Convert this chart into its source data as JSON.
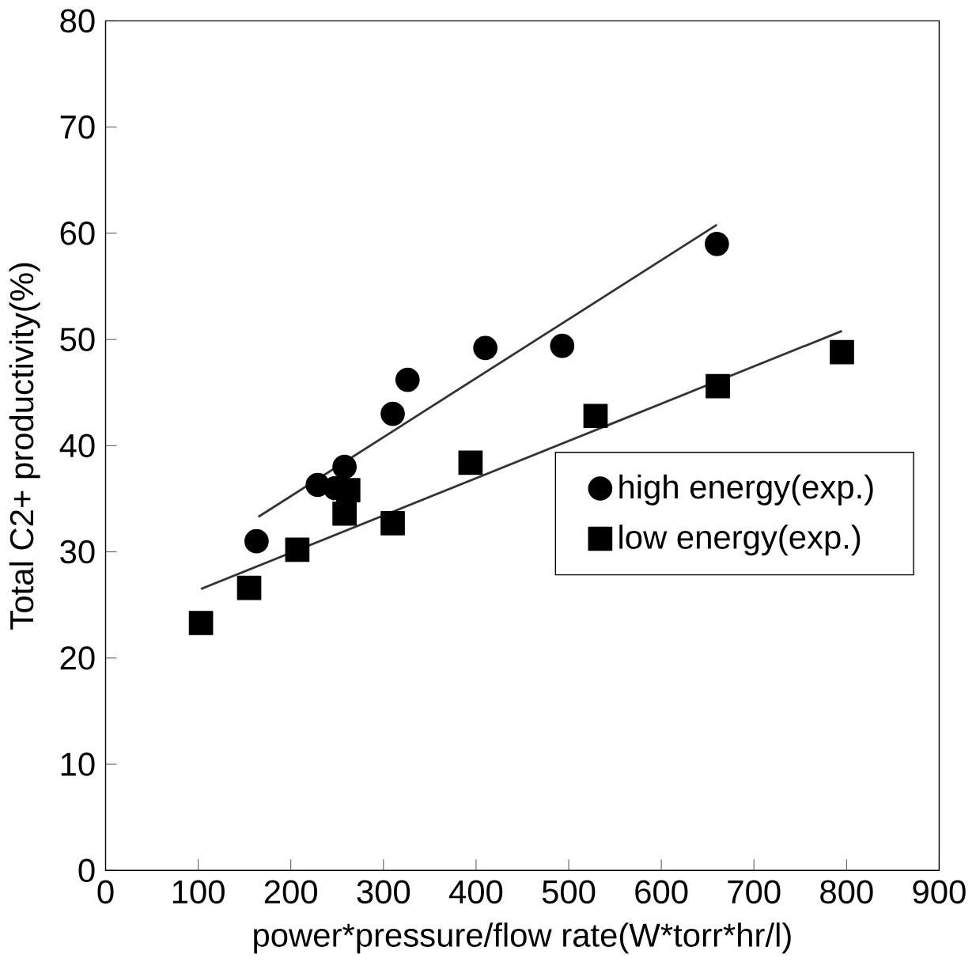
{
  "chart_data": {
    "type": "scatter",
    "xlabel": "power*pressure/flow rate(W*torr*hr/l)",
    "ylabel": "Total C2+ productivity(%)",
    "xlim": [
      0,
      900
    ],
    "xticks": [
      0,
      100,
      200,
      300,
      400,
      500,
      600,
      700,
      800,
      900
    ],
    "ylim": [
      0,
      80
    ],
    "yticks": [
      0,
      10,
      20,
      30,
      40,
      50,
      60,
      70,
      80
    ],
    "grid": false,
    "legend": "right",
    "series": [
      {
        "name": "high energy(exp.)",
        "color": "#000000",
        "marker": "circle",
        "x": [
          163,
          229,
          248,
          258,
          310,
          326,
          410,
          493,
          660
        ],
        "values": [
          31,
          36.3,
          36,
          38,
          43,
          46.2,
          49.2,
          49.4,
          59
        ]
      },
      {
        "name": "low energy(exp.)",
        "color": "#000000",
        "marker": "square",
        "x": [
          103,
          155,
          207,
          258,
          262,
          310,
          394,
          529,
          661,
          795
        ],
        "values": [
          23.3,
          26.6,
          30.2,
          33.6,
          35.8,
          32.7,
          38.4,
          42.8,
          45.6,
          48.8
        ]
      },
      {
        "type": "line",
        "color": "#333333",
        "marker": "none",
        "line_style": "solid",
        "x": [
          165,
          660
        ],
        "values": [
          33.3,
          60.8
        ]
      },
      {
        "type": "line",
        "color": "#333333",
        "marker": "none",
        "line_style": "solid",
        "x": [
          103,
          795
        ],
        "values": [
          26.5,
          50.8
        ]
      }
    ]
  }
}
